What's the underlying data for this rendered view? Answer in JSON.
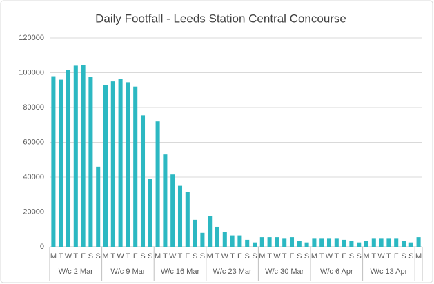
{
  "chart_data": {
    "type": "bar",
    "title": "Daily Footfall - Leeds Station Central Concourse",
    "categories": [
      "M",
      "T",
      "W",
      "T",
      "F",
      "S",
      "S",
      "M",
      "T",
      "W",
      "T",
      "F",
      "S",
      "S",
      "M",
      "T",
      "W",
      "T",
      "F",
      "S",
      "S",
      "M",
      "T",
      "W",
      "T",
      "F",
      "S",
      "S",
      "M",
      "T",
      "W",
      "T",
      "F",
      "S",
      "S",
      "M",
      "T",
      "W",
      "T",
      "F",
      "S",
      "S",
      "M",
      "T",
      "W",
      "T",
      "F",
      "S",
      "S",
      "M"
    ],
    "groups": [
      "W/c 2 Mar",
      "W/c 9 Mar",
      "W/c 16 Mar",
      "W/c 23 Mar",
      "W/c 30 Mar",
      "W/c 6 Apr",
      "W/c 13 Apr"
    ],
    "values": [
      98000,
      96000,
      101500,
      104000,
      104500,
      97500,
      46000,
      93000,
      95000,
      96500,
      94500,
      92000,
      75500,
      39000,
      72000,
      53000,
      41500,
      35000,
      31500,
      15500,
      8000,
      17500,
      11500,
      8500,
      6500,
      6500,
      4000,
      2500,
      5500,
      5500,
      5500,
      5000,
      5500,
      3500,
      2500,
      5000,
      5000,
      5000,
      5000,
      4000,
      3500,
      2500,
      3500,
      5000,
      5000,
      5000,
      5000,
      3500,
      2500,
      5500
    ],
    "color": "#2cb8c2",
    "ylim": [
      0,
      120000
    ],
    "yticks": [
      0,
      20000,
      40000,
      60000,
      80000,
      100000,
      120000
    ],
    "grid": true
  }
}
